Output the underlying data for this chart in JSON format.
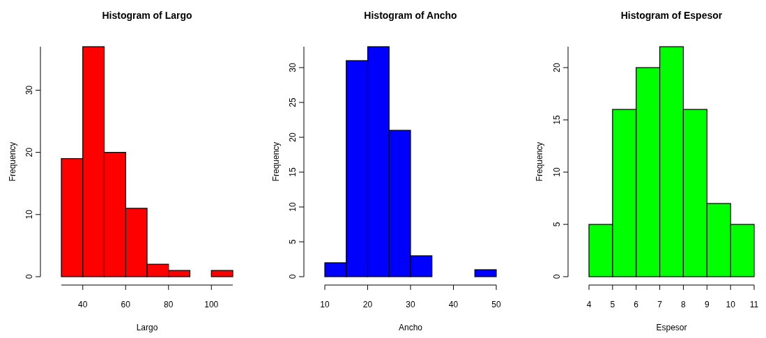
{
  "chart_data": [
    {
      "type": "histogram",
      "title": "Histogram of Largo",
      "xlabel": "Largo",
      "ylabel": "Frequency",
      "bins": [
        30,
        40,
        50,
        60,
        70,
        80,
        90,
        100,
        110
      ],
      "values": [
        19,
        37,
        20,
        11,
        2,
        1,
        0,
        1
      ],
      "color": "#ff0000",
      "xlim": [
        30,
        110
      ],
      "xticks": [
        40,
        60,
        80,
        100
      ],
      "ylim": [
        0,
        37
      ],
      "yticks": [
        0,
        10,
        20,
        30
      ],
      "grid": false
    },
    {
      "type": "histogram",
      "title": "Histogram of Ancho",
      "xlabel": "Ancho",
      "ylabel": "Frequency",
      "bins": [
        10,
        15,
        20,
        25,
        30,
        35,
        40,
        45,
        50
      ],
      "values": [
        2,
        31,
        33,
        21,
        3,
        0,
        0,
        1
      ],
      "color": "#0000ff",
      "xlim": [
        10,
        50
      ],
      "xticks": [
        10,
        20,
        30,
        40,
        50
      ],
      "ylim": [
        0,
        33
      ],
      "yticks": [
        0,
        5,
        10,
        15,
        20,
        25,
        30
      ],
      "grid": false
    },
    {
      "type": "histogram",
      "title": "Histogram of Espesor",
      "xlabel": "Espesor",
      "ylabel": "Frequency",
      "bins": [
        4,
        5,
        6,
        7,
        8,
        9,
        10,
        11
      ],
      "values": [
        5,
        16,
        20,
        22,
        16,
        7,
        5
      ],
      "color": "#00ff00",
      "xlim": [
        4,
        11
      ],
      "xticks": [
        4,
        5,
        6,
        7,
        8,
        9,
        10,
        11
      ],
      "ylim": [
        0,
        22
      ],
      "yticks": [
        0,
        5,
        10,
        15,
        20
      ],
      "grid": false
    }
  ]
}
